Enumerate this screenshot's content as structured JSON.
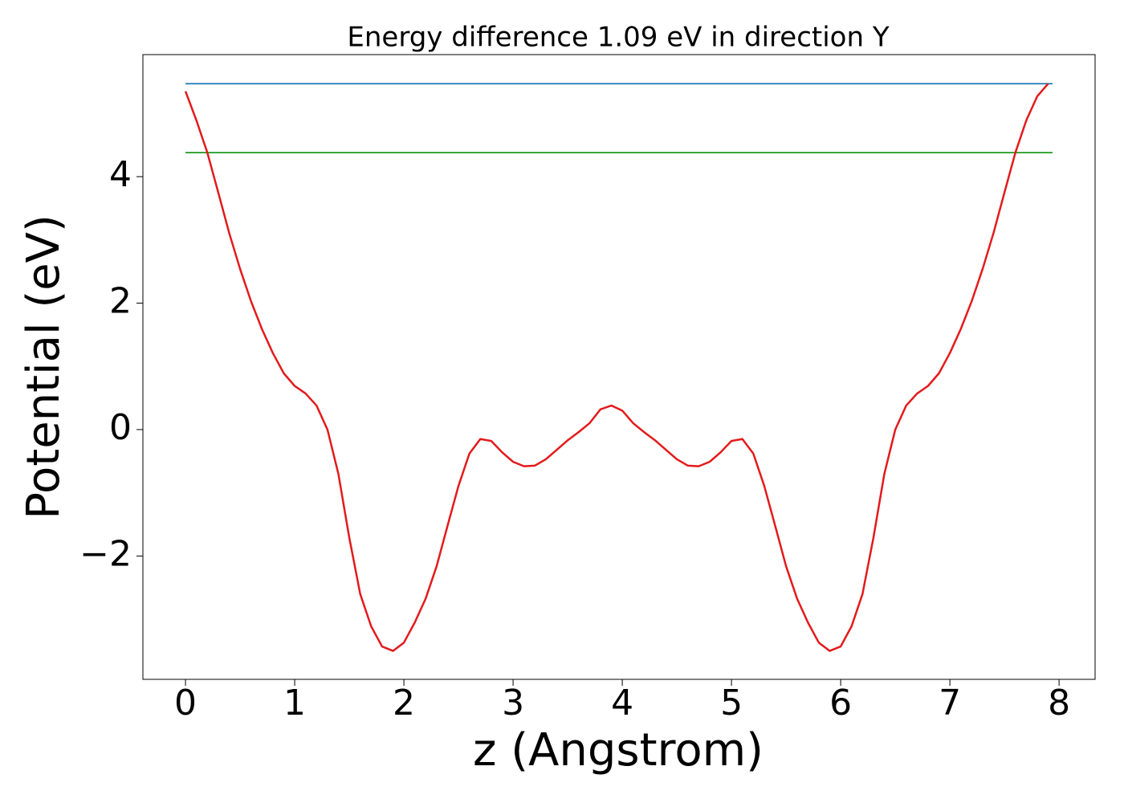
{
  "chart_data": {
    "type": "line",
    "title": "Energy difference 1.09 eV in direction Y",
    "xlabel": "z (Angstrom)",
    "ylabel": "Potential (eV)",
    "xlim": [
      -0.39,
      8.33
    ],
    "ylim": [
      -3.95,
      5.93
    ],
    "xticks": [
      0,
      1,
      2,
      3,
      4,
      5,
      6,
      7,
      8
    ],
    "yticks": [
      {
        "value": -2,
        "label": "−2"
      },
      0,
      2,
      4
    ],
    "grid": false,
    "series": [
      {
        "color": "#1f77b4",
        "x": [
          0,
          7.94
        ],
        "values": [
          5.47,
          5.47
        ]
      },
      {
        "color": "#2ca02c",
        "x": [
          0,
          7.94
        ],
        "values": [
          4.38,
          4.38
        ]
      },
      {
        "color": "#e31a1c",
        "x": [
          0,
          0.1,
          0.2,
          0.3,
          0.4,
          0.5,
          0.6,
          0.7,
          0.8,
          0.9,
          1.0,
          1.1,
          1.2,
          1.3,
          1.4,
          1.5,
          1.6,
          1.7,
          1.8,
          1.9,
          2.0,
          2.1,
          2.2,
          2.3,
          2.4,
          2.5,
          2.6,
          2.7,
          2.8,
          2.9,
          3.0,
          3.1,
          3.2,
          3.3,
          3.4,
          3.5,
          3.6,
          3.7,
          3.8,
          3.9,
          4.0,
          4.1,
          4.2,
          4.3,
          4.4,
          4.5,
          4.6,
          4.7,
          4.8,
          4.9,
          5.0,
          5.1,
          5.2,
          5.3,
          5.4,
          5.5,
          5.6,
          5.7,
          5.8,
          5.9,
          6.0,
          6.1,
          6.2,
          6.3,
          6.4,
          6.5,
          6.6,
          6.7,
          6.8,
          6.9,
          7.0,
          7.1,
          7.2,
          7.3,
          7.4,
          7.5,
          7.6,
          7.7,
          7.8,
          7.9
        ],
        "values": [
          5.35,
          4.89,
          4.38,
          3.75,
          3.11,
          2.54,
          2.03,
          1.59,
          1.21,
          0.89,
          0.69,
          0.57,
          0.38,
          0.0,
          -0.7,
          -1.71,
          -2.6,
          -3.11,
          -3.43,
          -3.5,
          -3.37,
          -3.05,
          -2.67,
          -2.16,
          -1.52,
          -0.89,
          -0.38,
          -0.15,
          -0.18,
          -0.36,
          -0.51,
          -0.58,
          -0.57,
          -0.47,
          -0.32,
          -0.17,
          -0.04,
          0.1,
          0.32,
          0.38,
          0.3,
          0.1,
          -0.04,
          -0.17,
          -0.32,
          -0.47,
          -0.57,
          -0.58,
          -0.51,
          -0.36,
          -0.18,
          -0.15,
          -0.38,
          -0.89,
          -1.52,
          -2.16,
          -2.67,
          -3.05,
          -3.37,
          -3.5,
          -3.43,
          -3.11,
          -2.6,
          -1.71,
          -0.7,
          0.0,
          0.38,
          0.57,
          0.69,
          0.89,
          1.21,
          1.59,
          2.03,
          2.54,
          3.11,
          3.75,
          4.38,
          4.89,
          5.27,
          5.47
        ]
      }
    ]
  }
}
